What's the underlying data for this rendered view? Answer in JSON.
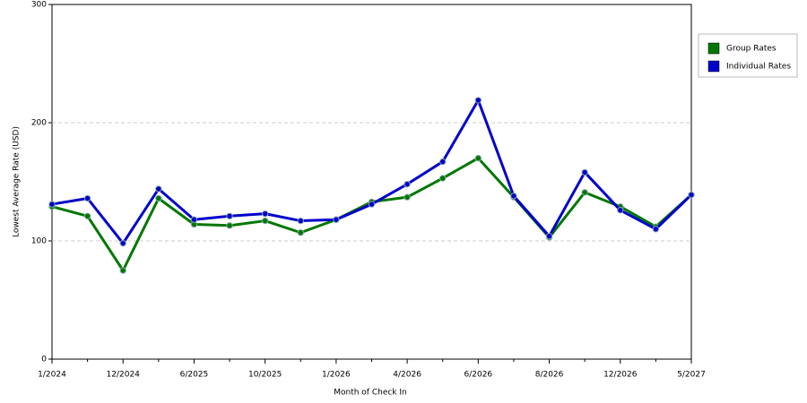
{
  "chart_data": {
    "type": "line",
    "x_label": "Month of Check In",
    "y_label": "Lowest Average Rate (USD)",
    "categories": [
      "1/2024",
      null,
      "12/2024",
      null,
      "6/2025",
      null,
      "10/2025",
      null,
      "1/2026",
      null,
      "4/2026",
      null,
      "6/2026",
      null,
      "8/2026",
      null,
      "12/2026",
      null,
      "5/2027"
    ],
    "series": [
      {
        "name": "Group Rates",
        "color": "#007700",
        "values": [
          129,
          121,
          75,
          136,
          114,
          113,
          117,
          107,
          118,
          133,
          137,
          153,
          170,
          137,
          103,
          141,
          129,
          112,
          139
        ]
      },
      {
        "name": "Individual Rates",
        "color": "#0000cc",
        "values": [
          131,
          136,
          98,
          144,
          118,
          121,
          123,
          117,
          118,
          131,
          148,
          167,
          219,
          138,
          104,
          158,
          126,
          110,
          139
        ]
      }
    ],
    "ylim": [
      0,
      300
    ],
    "yticks": [
      0,
      100,
      200,
      300
    ],
    "grid": true,
    "legend": "right"
  }
}
